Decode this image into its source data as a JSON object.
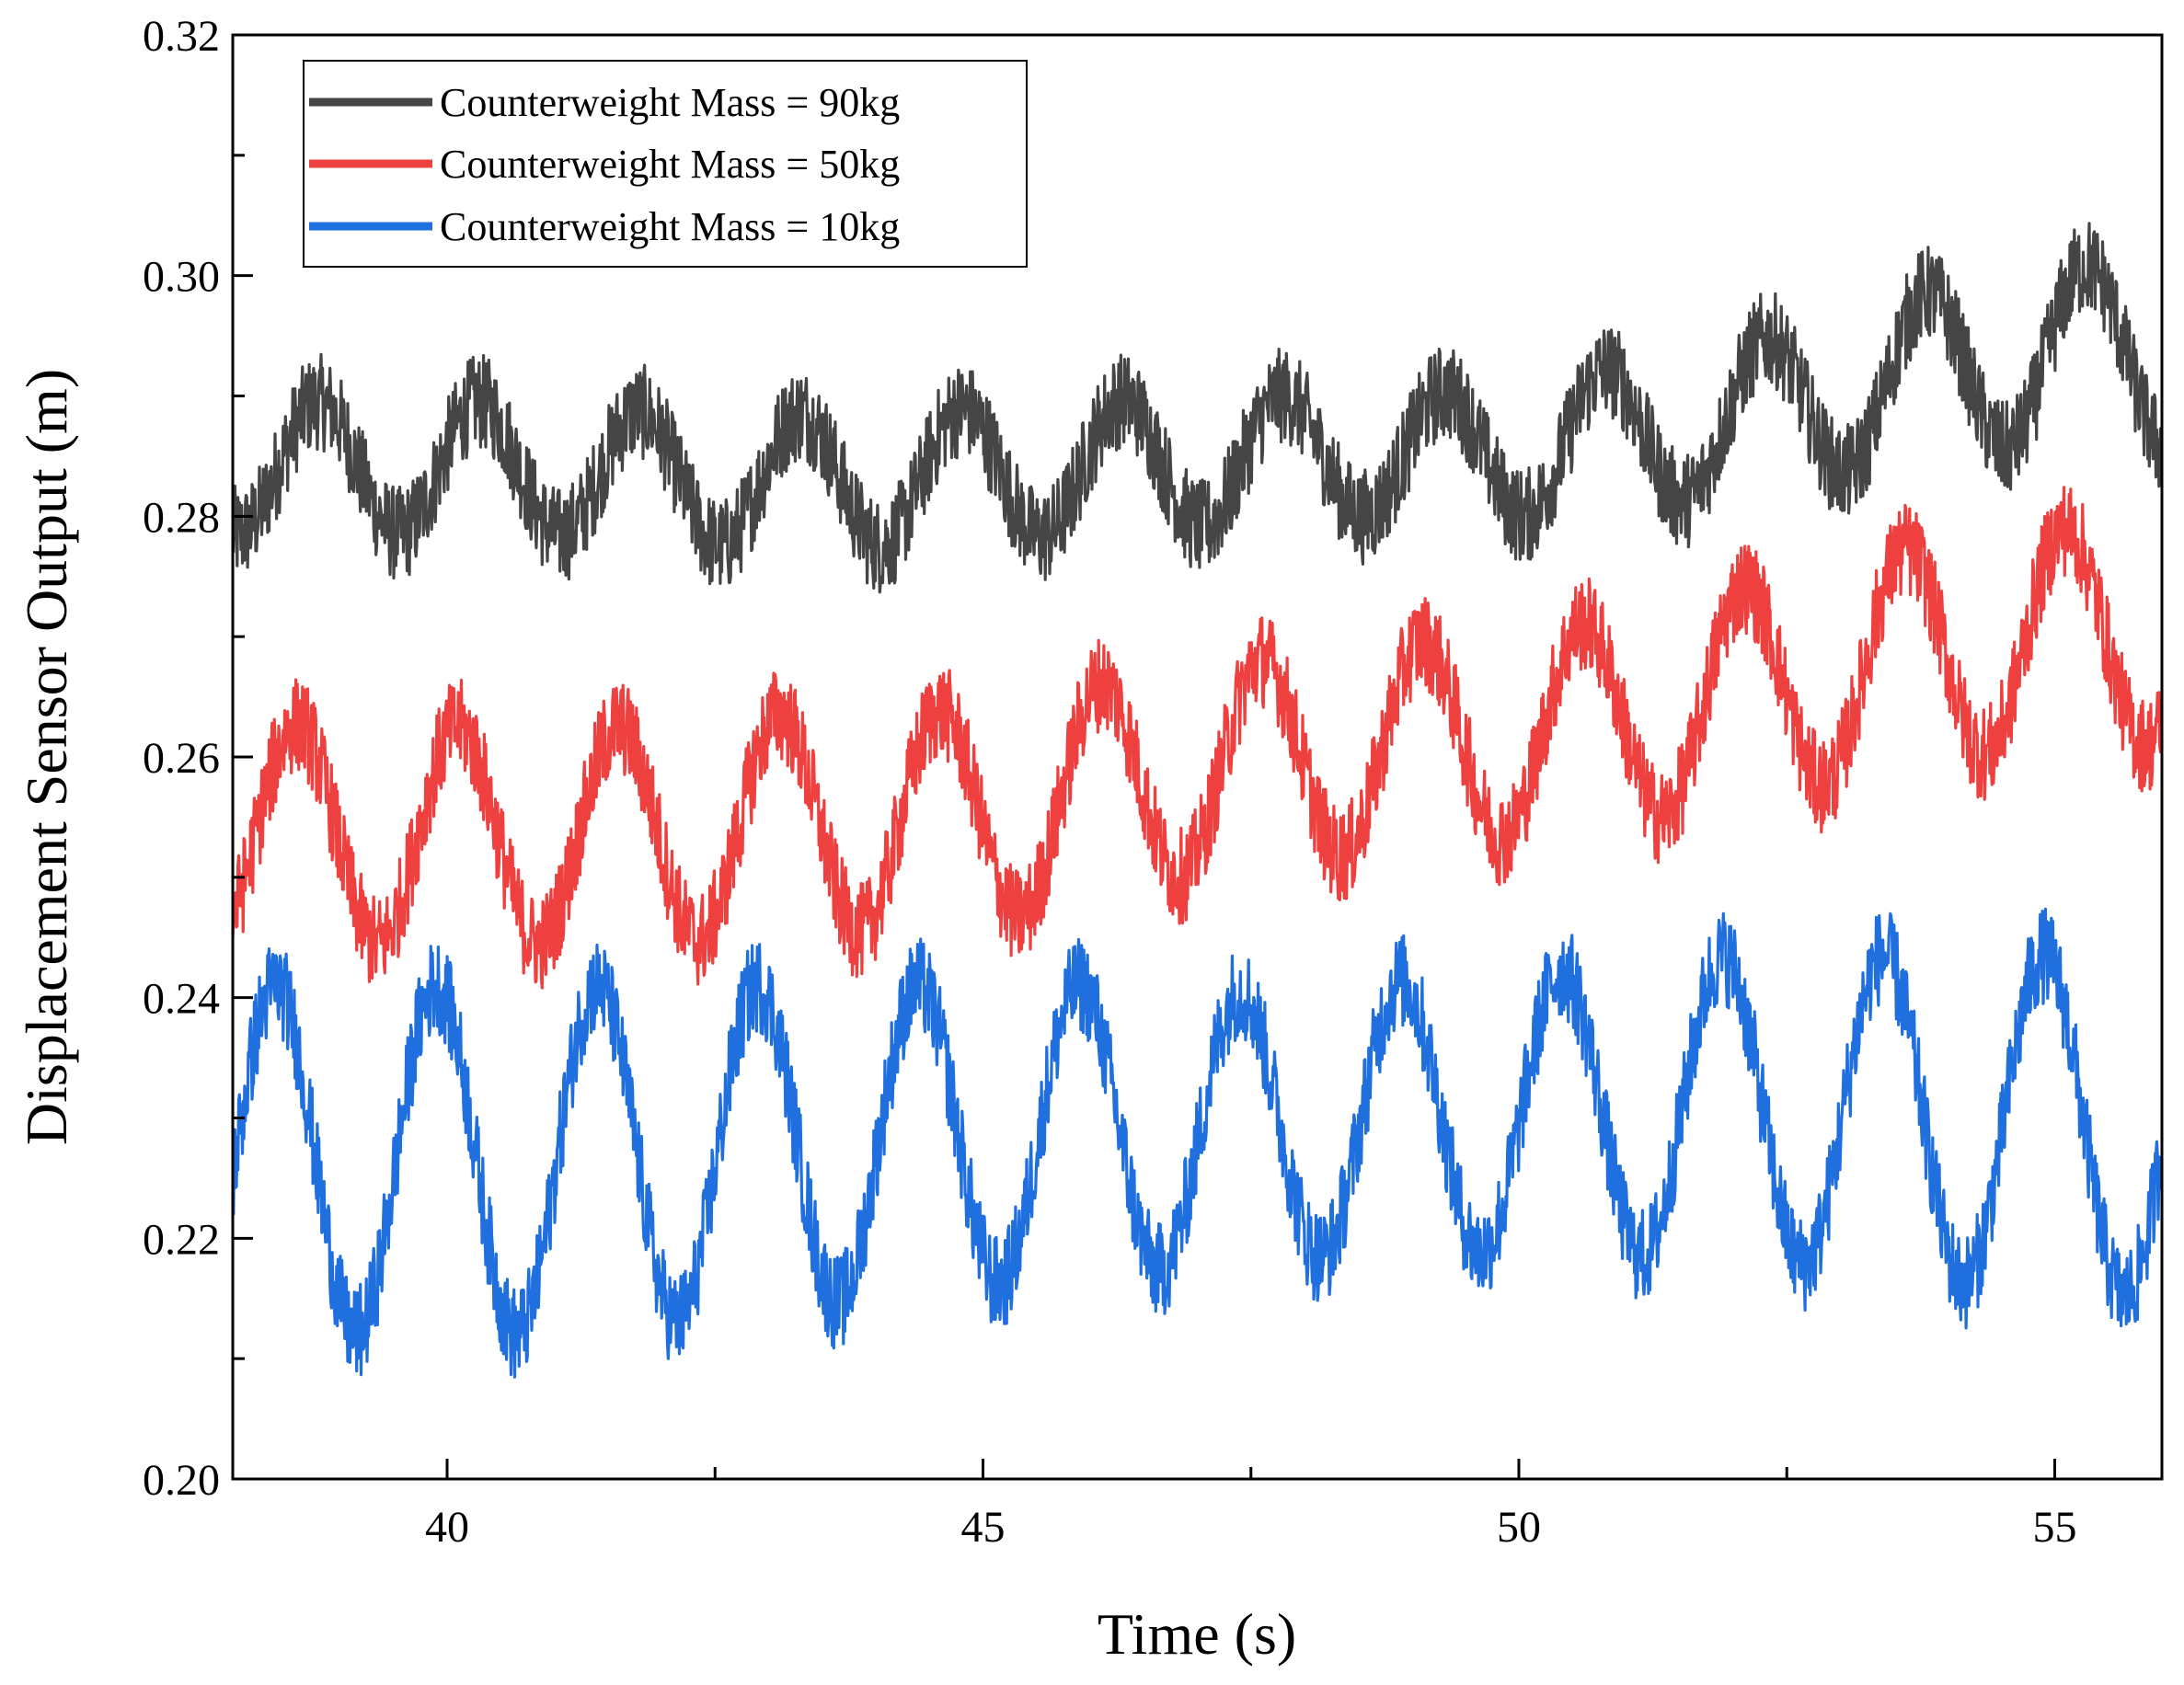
{
  "chart_data": {
    "type": "line",
    "title": "",
    "xlabel": "Time (s)",
    "ylabel": "Displacement Sensor Output (m)",
    "xlim": [
      38,
      56
    ],
    "ylim": [
      0.2,
      0.32
    ],
    "xticks": [
      40,
      45,
      50,
      55
    ],
    "xtick_labels": [
      "40",
      "45",
      "50",
      "55"
    ],
    "yticks": [
      0.2,
      0.22,
      0.24,
      0.26,
      0.28,
      0.3,
      0.32
    ],
    "ytick_labels": [
      "0.20",
      "0.22",
      "0.24",
      "0.26",
      "0.28",
      "0.30",
      "0.32"
    ],
    "grid": false,
    "legend_position": "top-left",
    "oscillation_period_s": 1.5,
    "noise_amplitude_m": 0.004,
    "series": [
      {
        "name": "Counterweight Mass = 90kg",
        "color": "#454545",
        "x": [
          38,
          39,
          40,
          41,
          42,
          43,
          44,
          45,
          46,
          47,
          48,
          49,
          50,
          51,
          52,
          53,
          54,
          55,
          56
        ],
        "center": [
          0.284,
          0.284,
          0.284,
          0.284,
          0.283,
          0.283,
          0.283,
          0.2835,
          0.284,
          0.2845,
          0.285,
          0.285,
          0.2855,
          0.2865,
          0.288,
          0.29,
          0.292,
          0.2935,
          0.293
        ],
        "amplitude": [
          0.0055,
          0.0055,
          0.0055,
          0.0055,
          0.0055,
          0.0055,
          0.0055,
          0.0055,
          0.0055,
          0.0055,
          0.005,
          0.005,
          0.0055,
          0.006,
          0.006,
          0.0065,
          0.007,
          0.0075,
          0.0075
        ],
        "first_peak_s": 38.8
      },
      {
        "name": "Counterweight Mass = 50kg",
        "color": "#ef4040",
        "x": [
          38,
          39,
          40,
          41,
          42,
          43,
          44,
          45,
          46,
          47,
          48,
          49,
          50,
          51,
          52,
          53,
          54,
          55,
          56
        ],
        "center": [
          0.254,
          0.2535,
          0.2535,
          0.2535,
          0.2535,
          0.2545,
          0.2545,
          0.255,
          0.257,
          0.259,
          0.26,
          0.261,
          0.262,
          0.263,
          0.265,
          0.267,
          0.269,
          0.27,
          0.27
        ],
        "amplitude": [
          0.009,
          0.009,
          0.009,
          0.009,
          0.009,
          0.009,
          0.009,
          0.009,
          0.009,
          0.0085,
          0.0085,
          0.0085,
          0.0085,
          0.0085,
          0.009,
          0.009,
          0.009,
          0.009,
          0.009
        ],
        "first_peak_s": 38.6
      },
      {
        "name": "Counterweight Mass = 10kg",
        "color": "#1f6fde",
        "x": [
          38,
          39,
          40,
          41,
          42,
          43,
          44,
          45,
          46,
          47,
          48,
          49,
          50,
          51,
          52,
          53,
          54,
          55,
          56
        ],
        "center": [
          0.2265,
          0.2265,
          0.2265,
          0.2265,
          0.227,
          0.2275,
          0.228,
          0.2285,
          0.229,
          0.229,
          0.2295,
          0.23,
          0.2305,
          0.2305,
          0.231,
          0.2305,
          0.23,
          0.2295,
          0.229
        ],
        "amplitude": [
          0.0145,
          0.0145,
          0.0145,
          0.0145,
          0.014,
          0.0135,
          0.013,
          0.0125,
          0.012,
          0.0115,
          0.011,
          0.0115,
          0.0115,
          0.012,
          0.0125,
          0.013,
          0.0135,
          0.014,
          0.014
        ],
        "first_peak_s": 38.4
      }
    ]
  }
}
